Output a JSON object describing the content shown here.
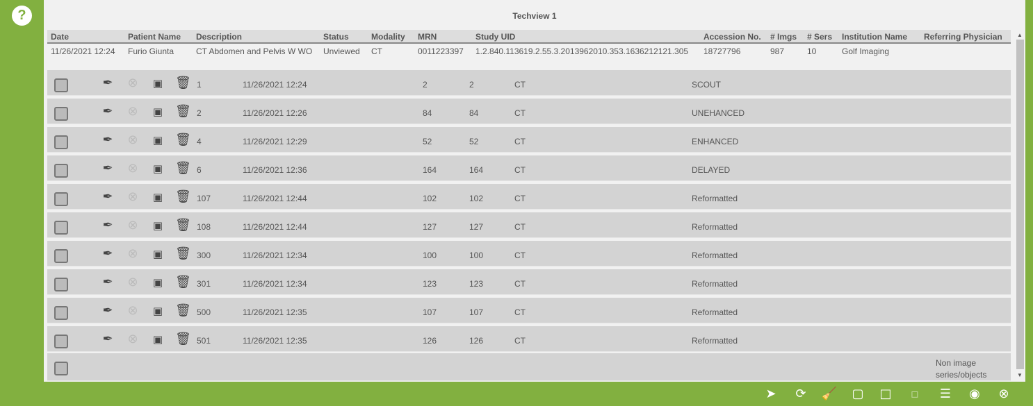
{
  "title": "Techview 1",
  "columns": [
    "Date",
    "Patient Name",
    "Description",
    "Status",
    "Modality",
    "MRN",
    "Study UID",
    "Accession No.",
    "# Imgs",
    "# Sers",
    "Institution Name",
    "Referring Physician"
  ],
  "study": [
    "11/26/2021 12:24",
    "Furio Giunta",
    "CT Abdomen and Pelvis W WO",
    "Unviewed",
    "CT",
    "0011223397",
    "1.2.840.113619.2.55.3.2013962010.353.1636212121.305",
    "18727796",
    "987",
    "10",
    "Golf Imaging",
    ""
  ],
  "series": [
    {
      "num": "1",
      "date": "11/26/2021 12:24",
      "a": "2",
      "b": "2",
      "mod": "CT",
      "desc": "SCOUT"
    },
    {
      "num": "2",
      "date": "11/26/2021 12:26",
      "a": "84",
      "b": "84",
      "mod": "CT",
      "desc": "UNEHANCED"
    },
    {
      "num": "4",
      "date": "11/26/2021 12:29",
      "a": "52",
      "b": "52",
      "mod": "CT",
      "desc": "ENHANCED"
    },
    {
      "num": "6",
      "date": "11/26/2021 12:36",
      "a": "164",
      "b": "164",
      "mod": "CT",
      "desc": "DELAYED"
    },
    {
      "num": "107",
      "date": "11/26/2021 12:44",
      "a": "102",
      "b": "102",
      "mod": "CT",
      "desc": "Reformatted"
    },
    {
      "num": "108",
      "date": "11/26/2021 12:44",
      "a": "127",
      "b": "127",
      "mod": "CT",
      "desc": "Reformatted"
    },
    {
      "num": "300",
      "date": "11/26/2021 12:34",
      "a": "100",
      "b": "100",
      "mod": "CT",
      "desc": "Reformatted"
    },
    {
      "num": "301",
      "date": "11/26/2021 12:34",
      "a": "123",
      "b": "123",
      "mod": "CT",
      "desc": "Reformatted"
    },
    {
      "num": "500",
      "date": "11/26/2021 12:35",
      "a": "107",
      "b": "107",
      "mod": "CT",
      "desc": "Reformatted"
    },
    {
      "num": "501",
      "date": "11/26/2021 12:35",
      "a": "126",
      "b": "126",
      "mod": "CT",
      "desc": "Reformatted"
    }
  ],
  "non_image": "Non image series/objects",
  "toolbar": [
    "send-icon",
    "refresh-icon",
    "broom-icon",
    "layout-large-icon",
    "layout-medium-icon",
    "layout-small-icon",
    "sort-rows-icon",
    "view-list-icon",
    "close-icon"
  ],
  "colors": {
    "brand": "#82b040"
  }
}
